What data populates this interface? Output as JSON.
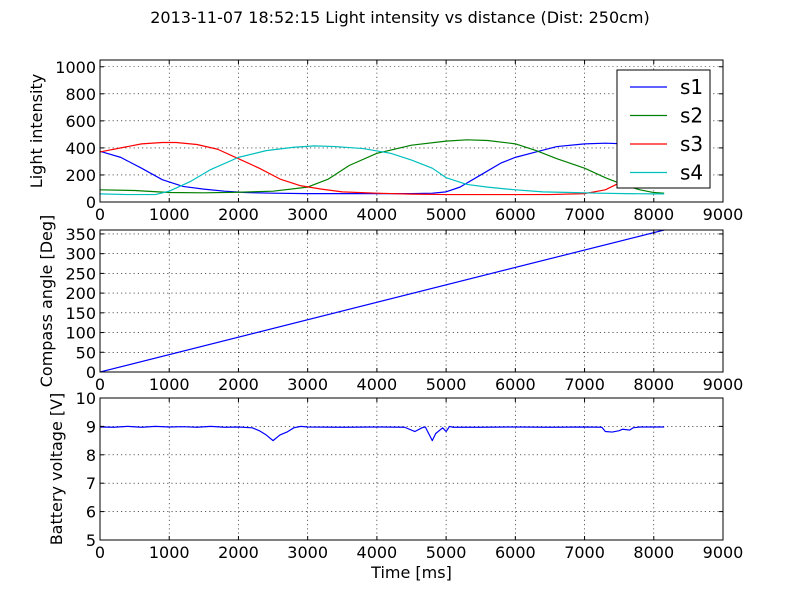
{
  "figure": {
    "title": "2013-11-07 18:52:15 Light intensity vs distance (Dist: 250cm)"
  },
  "colors": {
    "s1": "#0000ff",
    "s2": "#008000",
    "s3": "#ff0000",
    "s4": "#00bfbf"
  },
  "chart_data": [
    {
      "type": "line",
      "ylabel": "Light intensity",
      "xlabel": "",
      "xlim": [
        0,
        9000
      ],
      "ylim": [
        0,
        1050
      ],
      "xticks": [
        0,
        1000,
        2000,
        3000,
        4000,
        5000,
        6000,
        7000,
        8000,
        9000
      ],
      "yticks": [
        0,
        200,
        400,
        600,
        800,
        1000
      ],
      "grid": true,
      "legend": {
        "position": "top-right",
        "entries": [
          "s1",
          "s2",
          "s3",
          "s4"
        ]
      },
      "series": [
        {
          "name": "s1",
          "color_key": "s1",
          "x": [
            0,
            300,
            600,
            900,
            1200,
            1500,
            1800,
            2100,
            2500,
            3000,
            3500,
            4000,
            4500,
            4800,
            5000,
            5200,
            5500,
            5800,
            6000,
            6300,
            6600,
            7000,
            7300,
            7600,
            7800,
            8000,
            8150
          ],
          "y": [
            375,
            330,
            250,
            165,
            115,
            95,
            80,
            70,
            65,
            62,
            62,
            62,
            62,
            65,
            75,
            110,
            200,
            290,
            330,
            370,
            410,
            430,
            435,
            430,
            425,
            420,
            420
          ]
        },
        {
          "name": "s2",
          "color_key": "s2",
          "x": [
            0,
            500,
            1000,
            1500,
            2000,
            2500,
            3000,
            3300,
            3600,
            4000,
            4500,
            5000,
            5300,
            5600,
            6000,
            6300,
            6600,
            7000,
            7300,
            7600,
            7800,
            8000,
            8150
          ],
          "y": [
            90,
            85,
            70,
            68,
            72,
            80,
            110,
            170,
            270,
            360,
            420,
            450,
            460,
            455,
            430,
            380,
            320,
            250,
            180,
            120,
            90,
            70,
            65
          ]
        },
        {
          "name": "s3",
          "color_key": "s3",
          "x": [
            0,
            300,
            600,
            900,
            1100,
            1400,
            1700,
            2000,
            2300,
            2600,
            2900,
            3200,
            3500,
            4000,
            4500,
            5000,
            5500,
            6000,
            6500,
            7000,
            7300,
            7500,
            7700,
            7800
          ],
          "y": [
            370,
            400,
            430,
            440,
            440,
            425,
            390,
            320,
            250,
            170,
            120,
            95,
            75,
            65,
            58,
            55,
            55,
            55,
            55,
            62,
            90,
            140,
            200,
            230
          ]
        },
        {
          "name": "s4",
          "color_key": "s4",
          "x": [
            0,
            400,
            800,
            1000,
            1300,
            1600,
            2000,
            2400,
            2800,
            3100,
            3400,
            3800,
            4200,
            4500,
            4800,
            5000,
            5300,
            5600,
            6000,
            6400,
            6800,
            7200,
            7600,
            8000,
            8150
          ],
          "y": [
            60,
            55,
            55,
            80,
            150,
            240,
            330,
            380,
            405,
            415,
            410,
            395,
            360,
            310,
            250,
            180,
            130,
            110,
            90,
            75,
            70,
            65,
            62,
            60,
            60
          ]
        }
      ]
    },
    {
      "type": "line",
      "ylabel": "Compass angle [Deg]",
      "xlabel": "",
      "xlim": [
        0,
        9000
      ],
      "ylim": [
        0,
        360
      ],
      "xticks": [
        0,
        1000,
        2000,
        3000,
        4000,
        5000,
        6000,
        7000,
        8000,
        9000
      ],
      "yticks": [
        0,
        50,
        100,
        150,
        200,
        250,
        300,
        350
      ],
      "grid": true,
      "series": [
        {
          "color_key": "s1",
          "x": [
            0,
            8150
          ],
          "y": [
            0,
            360
          ]
        }
      ]
    },
    {
      "type": "line",
      "ylabel": "Battery voltage [V]",
      "xlabel": "Time [ms]",
      "xlim": [
        0,
        9000
      ],
      "ylim": [
        5,
        10
      ],
      "xticks": [
        0,
        1000,
        2000,
        3000,
        4000,
        5000,
        6000,
        7000,
        8000,
        9000
      ],
      "yticks": [
        5,
        6,
        7,
        8,
        9,
        10
      ],
      "grid": true,
      "series": [
        {
          "color_key": "s1",
          "x": [
            0,
            200,
            400,
            600,
            800,
            1000,
            1200,
            1400,
            1600,
            1800,
            2000,
            2200,
            2300,
            2400,
            2500,
            2600,
            2700,
            2800,
            2900,
            3000,
            3500,
            4000,
            4400,
            4550,
            4650,
            4700,
            4800,
            4850,
            4950,
            5000,
            5050,
            5100,
            5500,
            6000,
            6500,
            7000,
            7250,
            7300,
            7400,
            7500,
            7550,
            7650,
            7700,
            7800,
            8000,
            8150
          ],
          "y": [
            8.98,
            8.97,
            9.0,
            8.97,
            9.0,
            8.98,
            8.99,
            8.97,
            9.0,
            8.97,
            8.98,
            8.95,
            8.85,
            8.7,
            8.5,
            8.7,
            8.8,
            8.95,
            9.0,
            8.98,
            8.97,
            8.98,
            8.97,
            8.82,
            8.95,
            8.98,
            8.5,
            8.75,
            8.95,
            8.82,
            9.0,
            8.97,
            8.97,
            8.98,
            8.97,
            8.98,
            8.97,
            8.82,
            8.8,
            8.85,
            8.9,
            8.87,
            8.95,
            8.98,
            8.98,
            8.98
          ]
        }
      ]
    }
  ]
}
